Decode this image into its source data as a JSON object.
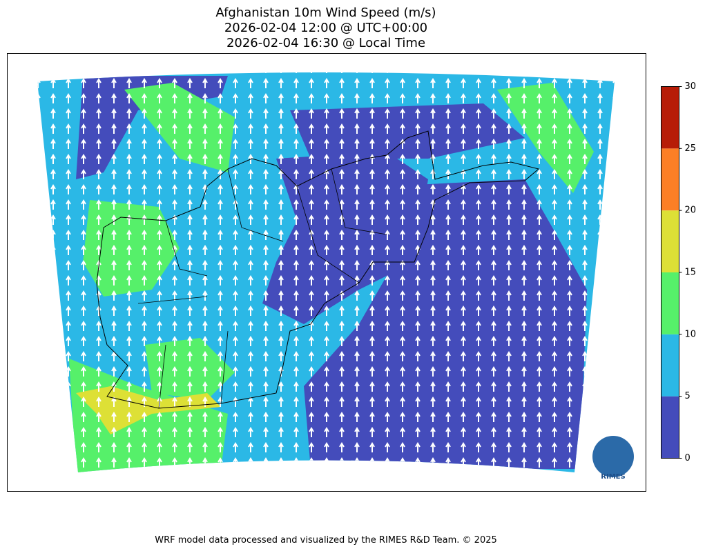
{
  "header": {
    "title": [
      "Afghanistan 10m Wind Speed (m/s)",
      "2026-02-04 12:00 @ UTC+00:00",
      "2026-02-04 16:30 @ Local Time"
    ]
  },
  "colorbar": {
    "lim": [
      0,
      30
    ],
    "ticks": [
      0,
      5,
      10,
      15,
      20,
      25,
      30
    ],
    "colors": [
      "#444cbb",
      "#2bb8e6",
      "#56f06a",
      "#dde036",
      "#fc7f26",
      "#b71c07"
    ]
  },
  "logo": {
    "text": "RIMES"
  },
  "footer": "WRF model data processed and visualized by the RIMES R&D Team. © 2025"
}
